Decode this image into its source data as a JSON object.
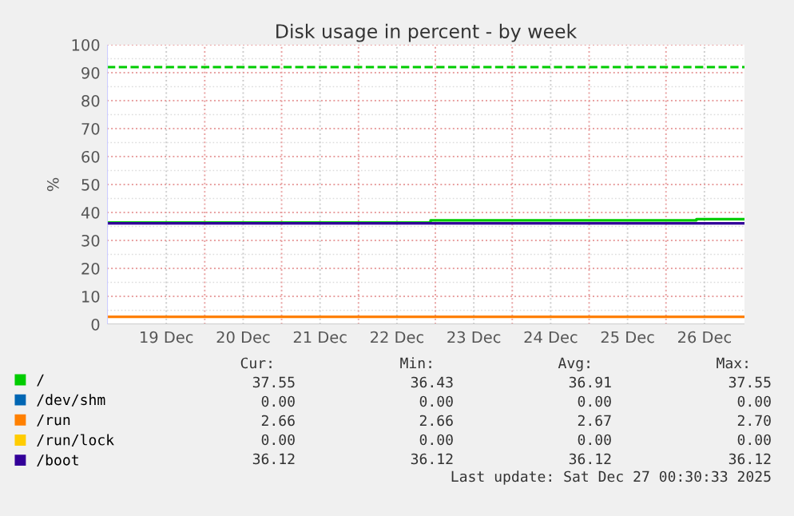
{
  "chart_data": {
    "type": "step",
    "title": "Disk usage in percent - by week",
    "ylabel": "%",
    "xlim": [
      "2025-12-18T17:30",
      "2025-12-27T00:30"
    ],
    "xticks": [
      {
        "value": "2025-12-19T12:00",
        "label": "19 Dec"
      },
      {
        "value": "2025-12-20T12:00",
        "label": "20 Dec"
      },
      {
        "value": "2025-12-21T12:00",
        "label": "21 Dec"
      },
      {
        "value": "2025-12-22T12:00",
        "label": "22 Dec"
      },
      {
        "value": "2025-12-23T12:00",
        "label": "23 Dec"
      },
      {
        "value": "2025-12-24T12:00",
        "label": "24 Dec"
      },
      {
        "value": "2025-12-25T12:00",
        "label": "25 Dec"
      },
      {
        "value": "2025-12-26T12:00",
        "label": "26 Dec"
      },
      {
        "value": "2025-12-20T00:00",
        "label": null
      },
      {
        "value": "2025-12-21T00:00",
        "label": null
      },
      {
        "value": "2025-12-22T00:00",
        "label": null
      },
      {
        "value": "2025-12-23T00:00",
        "label": null
      },
      {
        "value": "2025-12-24T00:00",
        "label": null
      },
      {
        "value": "2025-12-25T00:00",
        "label": null
      },
      {
        "value": "2025-12-26T00:00",
        "label": null
      }
    ],
    "ylim": [
      0,
      100
    ],
    "yticks": [
      0,
      10,
      20,
      30,
      40,
      50,
      60,
      70,
      80,
      90,
      100
    ],
    "grid": true,
    "legend": "bottom left",
    "line_style": "solid",
    "marker": "none",
    "series": [
      {
        "name": "/",
        "color": "#00cc00",
        "x": [
          "2025-12-18T17:30",
          "2025-12-22T22:30",
          "2025-12-26T09:30",
          "2025-12-27T00:30"
        ],
        "values": [
          36.4,
          37.2,
          37.6,
          37.6
        ]
      },
      {
        "name": "/dev/shm",
        "color": "#0066b3"
      },
      {
        "name": "/run",
        "color": "#ff8000",
        "x": [
          "2025-12-18T17:30",
          "2025-12-27T00:30"
        ],
        "values": [
          2.7,
          2.7
        ]
      },
      {
        "name": "/run/lock",
        "color": "#ffcc00"
      },
      {
        "name": "/boot",
        "color": "#330099",
        "x": [
          "2025-12-18T17:30",
          "2025-12-27T00:30"
        ],
        "values": [
          36.1,
          36.1
        ]
      }
    ],
    "ref_lines": [
      {
        "axis": "y",
        "value": 92,
        "label": null,
        "color": "#00cc00",
        "line_style": "dashed"
      }
    ],
    "annotations": [
      "Cur:",
      "Min:",
      "Avg:",
      "Max:",
      "37.55",
      "36.43",
      "36.91",
      "37.55",
      "0.00",
      "0.00",
      "0.00",
      "0.00",
      "2.66",
      "2.66",
      "2.67",
      "2.70",
      "0.00",
      "0.00",
      "0.00",
      "0.00",
      "36.12",
      "36.12",
      "36.12",
      "36.12",
      "Last update: Sat Dec 27 00:30:33 2025"
    ]
  }
}
